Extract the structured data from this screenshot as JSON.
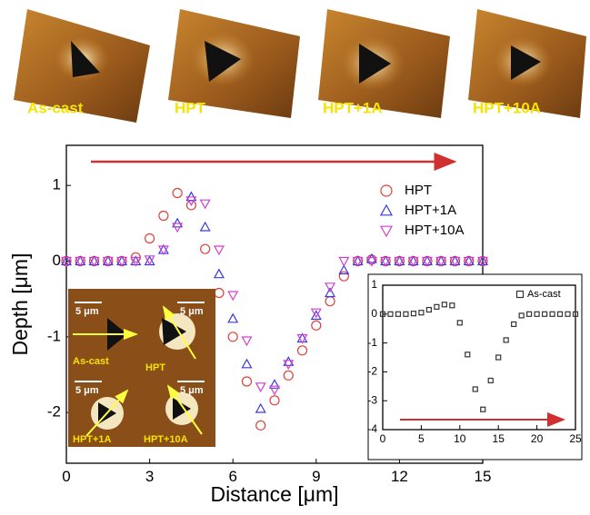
{
  "images": [
    {
      "label": "As-cast"
    },
    {
      "label": "HPT"
    },
    {
      "label": "HPT+1A"
    },
    {
      "label": "HPT+10A"
    }
  ],
  "inset_images": [
    {
      "label": "As-cast",
      "scale": "5 μm"
    },
    {
      "label": "HPT",
      "scale": "5 μm"
    },
    {
      "label": "HPT+1A",
      "scale": "5 μm"
    },
    {
      "label": "HPT+10A",
      "scale": "5 μm"
    }
  ],
  "chart_data": [
    {
      "type": "scatter",
      "x_label": "Distance [μm]",
      "y_label": "Depth [μm]",
      "x": [
        0,
        0.5,
        1,
        1.5,
        2,
        2.5,
        3,
        3.5,
        4,
        4.5,
        5,
        5.5,
        6,
        6.5,
        7,
        7.5,
        8,
        8.5,
        9,
        9.5,
        10,
        10.5,
        11,
        11.5,
        12,
        12.5,
        13,
        13.5,
        14,
        14.5,
        15
      ],
      "series": [
        {
          "name": "HPT",
          "color": "#e0403a",
          "marker": "circle",
          "values": [
            0,
            0,
            0,
            0,
            0,
            0.05,
            0.3,
            0.6,
            0.9,
            0.74,
            0.16,
            -0.42,
            -1.0,
            -1.59,
            -2.17,
            -1.84,
            -1.51,
            -1.18,
            -0.85,
            -0.53,
            -0.2,
            0,
            0.02,
            0,
            0,
            0,
            0,
            0,
            0,
            0,
            0
          ]
        },
        {
          "name": "HPT+1A",
          "color": "#3a3ae0",
          "marker": "triangle",
          "values": [
            0,
            0,
            0,
            0,
            0,
            0,
            0,
            0.15,
            0.5,
            0.85,
            0.45,
            -0.17,
            -0.76,
            -1.36,
            -1.95,
            -1.63,
            -1.33,
            -1.02,
            -0.72,
            -0.42,
            -0.12,
            0,
            0.03,
            0,
            0,
            0,
            0,
            0,
            0,
            0,
            0
          ]
        },
        {
          "name": "HPT+10A",
          "color": "#d040d0",
          "marker": "triangle-down",
          "values": [
            0,
            0,
            0,
            0,
            0,
            0,
            0.02,
            0.15,
            0.45,
            0.8,
            0.76,
            0.15,
            -0.45,
            -1.05,
            -1.66,
            -1.7,
            -1.36,
            -1.02,
            -0.68,
            -0.34,
            0,
            0,
            0,
            0,
            0,
            0,
            0,
            0,
            0,
            0,
            0
          ]
        }
      ],
      "xlim": [
        0,
        15
      ],
      "xticks": [
        0,
        3,
        6,
        9,
        12,
        15
      ],
      "ylim": [
        -2.67,
        1.53
      ],
      "yticks": [
        -2,
        -1,
        0,
        1
      ],
      "legend": "upper right"
    },
    {
      "type": "scatter",
      "x": [
        0,
        1,
        2,
        3,
        4,
        5,
        6,
        7,
        8,
        9,
        10,
        11,
        12,
        13,
        14,
        15,
        16,
        17,
        18,
        19,
        20,
        21,
        22,
        23,
        24,
        25
      ],
      "series": [
        {
          "name": "As-cast",
          "color": "#333333",
          "marker": "square",
          "values": [
            0,
            0,
            0,
            0,
            0.02,
            0.05,
            0.15,
            0.25,
            0.33,
            0.3,
            -0.3,
            -1.4,
            -2.6,
            -3.3,
            -2.3,
            -1.5,
            -0.9,
            -0.35,
            -0.05,
            0,
            0,
            0,
            0,
            0,
            0,
            0
          ]
        }
      ],
      "xlim": [
        0,
        25
      ],
      "xticks": [
        0,
        5,
        10,
        15,
        20,
        25
      ],
      "ylim": [
        -4,
        1
      ],
      "yticks": [
        1,
        0,
        -1,
        -2,
        -3,
        -4
      ],
      "legend": "upper right"
    }
  ]
}
